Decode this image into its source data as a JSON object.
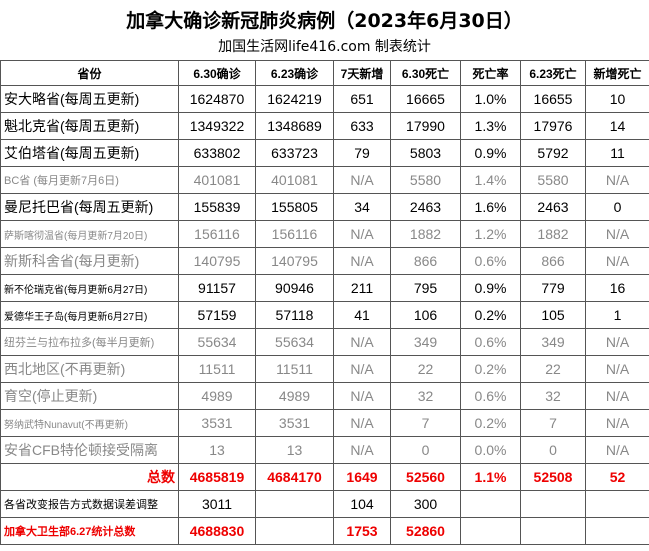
{
  "header": {
    "title": "加拿大确诊新冠肺炎病例（2023年6月30日）",
    "subtitle": "加国生活网life416.com 制表统计"
  },
  "table": {
    "columns": [
      "省份",
      "6.30确诊",
      "6.23确诊",
      "7天新增",
      "6.30死亡",
      "死亡率",
      "6.23死亡",
      "新增死亡"
    ],
    "rows": [
      [
        "安大略省(每周五更新)",
        "1624870",
        "1624219",
        "651",
        "16665",
        "1.0%",
        "16655",
        "10"
      ],
      [
        "魁北克省(每周五更新)",
        "1349322",
        "1348689",
        "633",
        "17990",
        "1.3%",
        "17976",
        "14"
      ],
      [
        "艾伯塔省(每周五更新)",
        "633802",
        "633723",
        "79",
        "5803",
        "0.9%",
        "5792",
        "11"
      ],
      [
        "BC省 (每月更新7月6日)",
        "401081",
        "401081",
        "N/A",
        "5580",
        "1.4%",
        "5580",
        "N/A"
      ],
      [
        "曼尼托巴省(每周五更新)",
        "155839",
        "155805",
        "34",
        "2463",
        "1.6%",
        "2463",
        "0"
      ],
      [
        "萨斯喀彻温省(每月更新7月20日)",
        "156116",
        "156116",
        "N/A",
        "1882",
        "1.2%",
        "1882",
        "N/A"
      ],
      [
        "新斯科舍省(每月更新)",
        "140795",
        "140795",
        "N/A",
        "866",
        "0.6%",
        "866",
        "N/A"
      ],
      [
        "新不伦瑞克省(每月更新6月27日)",
        "91157",
        "90946",
        "211",
        "795",
        "0.9%",
        "779",
        "16"
      ],
      [
        "爱德华王子岛(每月更新6月27日)",
        "57159",
        "57118",
        "41",
        "106",
        "0.2%",
        "105",
        "1"
      ],
      [
        "纽芬兰与拉布拉多(每半月更新)",
        "55634",
        "55634",
        "N/A",
        "349",
        "0.6%",
        "349",
        "N/A"
      ],
      [
        "西北地区(不再更新)",
        "11511",
        "11511",
        "N/A",
        "22",
        "0.2%",
        "22",
        "N/A"
      ],
      [
        "育空(停止更新)",
        "4989",
        "4989",
        "N/A",
        "32",
        "0.6%",
        "32",
        "N/A"
      ],
      [
        "努纳武特Nunavut(不再更新)",
        "3531",
        "3531",
        "N/A",
        "7",
        "0.2%",
        "7",
        "N/A"
      ],
      [
        "安省CFB特伦顿接受隔离",
        "13",
        "13",
        "N/A",
        "0",
        "0.0%",
        "0",
        "N/A"
      ],
      [
        "总数",
        "4685819",
        "4684170",
        "1649",
        "52560",
        "1.1%",
        "52508",
        "52"
      ],
      [
        "各省改变报告方式数据误差调整",
        "3011",
        null,
        "104",
        "300",
        null,
        null,
        null
      ],
      [
        "加拿大卫生部6.27统计总数",
        "4688830",
        null,
        "1753",
        "52860",
        null,
        null,
        null
      ]
    ]
  }
}
